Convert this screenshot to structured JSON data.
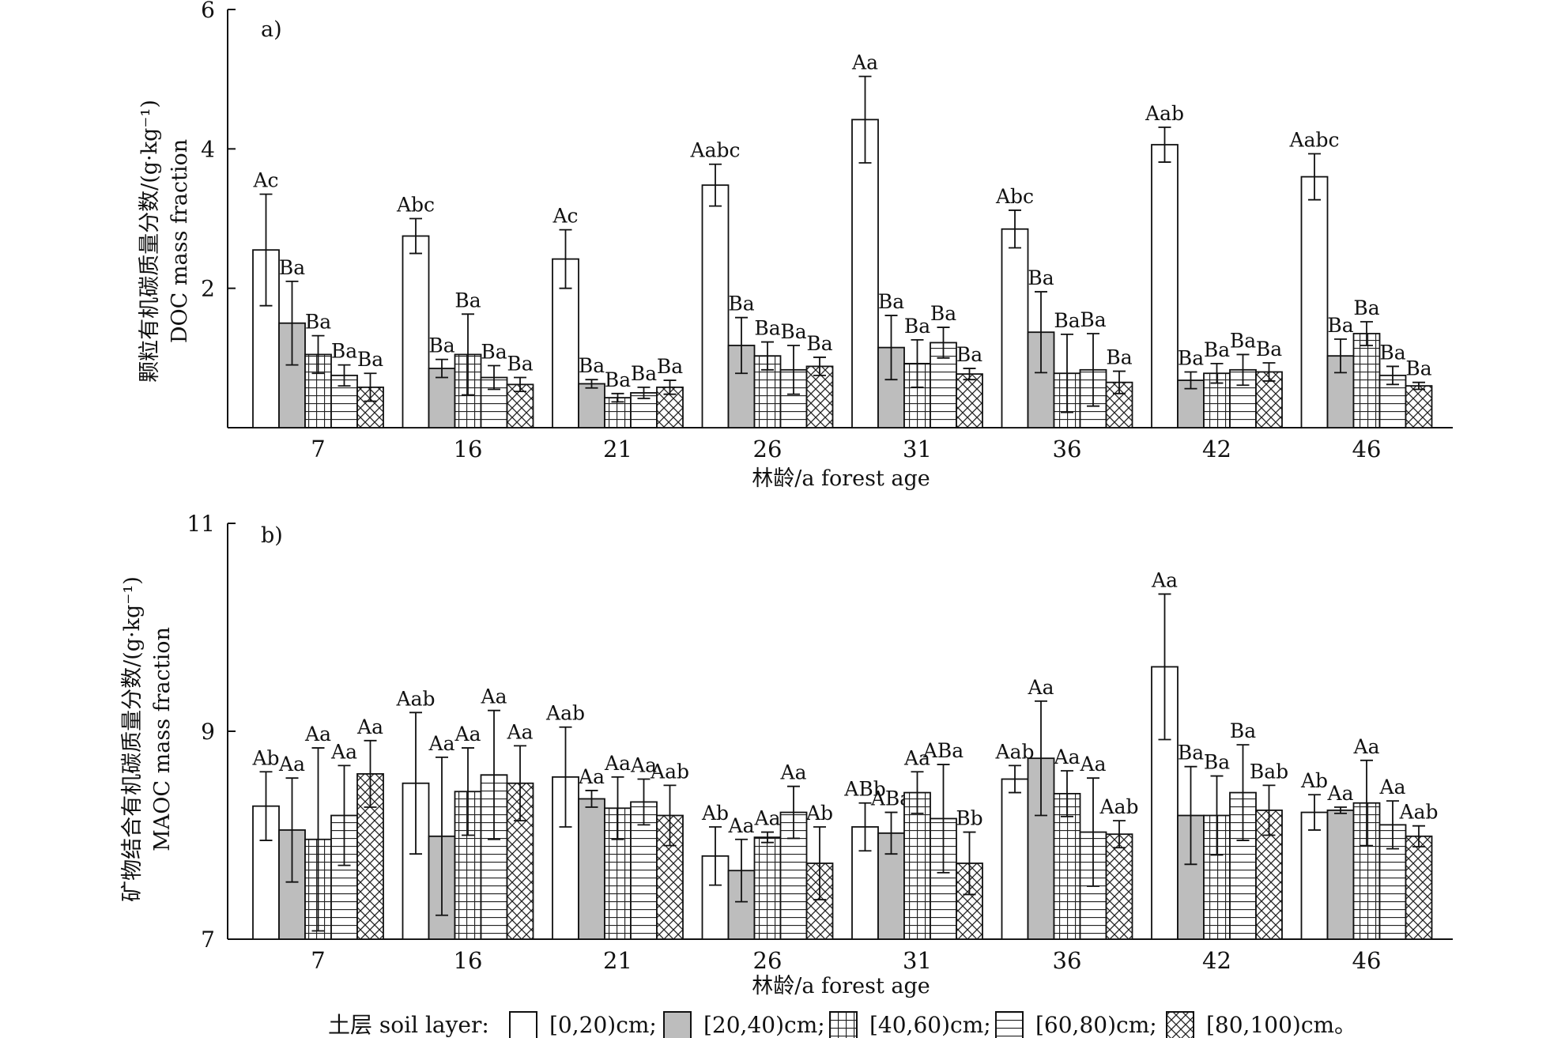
{
  "chart_data": [
    {
      "type": "bar",
      "panel_label": "a)",
      "categories": [
        "7",
        "16",
        "21",
        "26",
        "31",
        "36",
        "42",
        "46"
      ],
      "xlabel": "林龄/a forest age",
      "ylabel_zh": "颗粒有机碳质量分数/(g·kg⁻¹)",
      "ylabel_en": "DOC mass fraction",
      "ylim": [
        0,
        6
      ],
      "yticks": [
        2,
        4,
        6
      ],
      "series": [
        {
          "name": "[0,20)cm",
          "values": [
            2.55,
            2.75,
            2.42,
            3.48,
            4.42,
            2.85,
            4.06,
            3.6
          ],
          "errors": [
            0.8,
            0.25,
            0.42,
            0.3,
            0.62,
            0.27,
            0.25,
            0.33
          ],
          "labels": [
            "Ac",
            "Abc",
            "Ac",
            "Aabc",
            "Aa",
            "Abc",
            "Aab",
            "Aabc"
          ]
        },
        {
          "name": "[20,40)cm",
          "values": [
            1.5,
            0.85,
            0.63,
            1.18,
            1.15,
            1.37,
            0.68,
            1.03
          ],
          "errors": [
            0.6,
            0.13,
            0.06,
            0.4,
            0.46,
            0.58,
            0.12,
            0.24
          ],
          "labels": [
            "Ba",
            "Ba",
            "Ba",
            "Ba",
            "Ba",
            "Ba",
            "Ba",
            "Ba"
          ]
        },
        {
          "name": "[40,60)cm",
          "values": [
            1.05,
            1.05,
            0.43,
            1.03,
            0.92,
            0.78,
            0.78,
            1.35
          ],
          "errors": [
            0.27,
            0.58,
            0.06,
            0.2,
            0.34,
            0.56,
            0.14,
            0.17
          ],
          "labels": [
            "Ba",
            "Ba",
            "Ba",
            "Ba",
            "Ba",
            "Ba",
            "Ba",
            "Ba"
          ]
        },
        {
          "name": "[60,80)cm",
          "values": [
            0.75,
            0.72,
            0.5,
            0.83,
            1.22,
            0.83,
            0.83,
            0.75
          ],
          "errors": [
            0.15,
            0.17,
            0.08,
            0.35,
            0.22,
            0.52,
            0.22,
            0.13
          ],
          "labels": [
            "Ba",
            "Ba",
            "Ba",
            "Ba",
            "Ba",
            "Ba",
            "Ba",
            "Ba"
          ]
        },
        {
          "name": "[80,100)cm",
          "values": [
            0.58,
            0.62,
            0.58,
            0.88,
            0.77,
            0.65,
            0.8,
            0.6
          ],
          "errors": [
            0.2,
            0.1,
            0.1,
            0.13,
            0.08,
            0.16,
            0.13,
            0.05
          ],
          "labels": [
            "Ba",
            "Ba",
            "Ba",
            "Ba",
            "Ba",
            "Ba",
            "Ba",
            "Ba"
          ]
        }
      ]
    },
    {
      "type": "bar",
      "panel_label": "b)",
      "categories": [
        "7",
        "16",
        "21",
        "26",
        "31",
        "36",
        "42",
        "46"
      ],
      "xlabel": "林龄/a forest age",
      "ylabel_zh": "矿物结合有机碳质量分数/(g·kg⁻¹)",
      "ylabel_en": "MAOC mass fraction",
      "ylim": [
        7,
        11
      ],
      "yticks": [
        7,
        9,
        11
      ],
      "series": [
        {
          "name": "[0,20)cm",
          "values": [
            8.28,
            8.5,
            8.56,
            7.8,
            8.08,
            8.54,
            9.62,
            8.22
          ],
          "errors": [
            0.33,
            0.68,
            0.48,
            0.28,
            0.23,
            0.13,
            0.7,
            0.17
          ],
          "labels": [
            "Ab",
            "Aab",
            "Aab",
            "Ab",
            "ABb",
            "Aab",
            "Aa",
            "Ab"
          ]
        },
        {
          "name": "[20,40)cm",
          "values": [
            8.05,
            7.99,
            8.35,
            7.66,
            8.02,
            8.74,
            8.19,
            8.24
          ],
          "errors": [
            0.5,
            0.76,
            0.08,
            0.3,
            0.2,
            0.55,
            0.47,
            0.03
          ],
          "labels": [
            "Aa",
            "Aa",
            "Aa",
            "Aa",
            "ABa",
            "Aa",
            "Ba",
            "Aa"
          ]
        },
        {
          "name": "[40,60)cm",
          "values": [
            7.96,
            8.42,
            8.26,
            7.98,
            8.41,
            8.4,
            8.19,
            8.31
          ],
          "errors": [
            0.88,
            0.42,
            0.3,
            0.05,
            0.2,
            0.22,
            0.38,
            0.41
          ],
          "labels": [
            "Aa",
            "Aa",
            "Aa",
            "Aa",
            "Aa",
            "Aa",
            "Ba",
            "Aa"
          ]
        },
        {
          "name": "[60,80)cm",
          "values": [
            8.19,
            8.58,
            8.32,
            8.22,
            8.16,
            8.03,
            8.41,
            8.1
          ],
          "errors": [
            0.48,
            0.62,
            0.22,
            0.25,
            0.52,
            0.52,
            0.46,
            0.23
          ],
          "labels": [
            "Aa",
            "Aa",
            "Aa",
            "Aa",
            "ABa",
            "Aa",
            "Ba",
            "Aa"
          ]
        },
        {
          "name": "[80,100)cm",
          "values": [
            8.59,
            8.5,
            8.19,
            7.73,
            7.73,
            8.01,
            8.24,
            7.99
          ],
          "errors": [
            0.32,
            0.36,
            0.29,
            0.35,
            0.3,
            0.13,
            0.24,
            0.1
          ],
          "labels": [
            "Aa",
            "Aa",
            "Aab",
            "Ab",
            "Bb",
            "Aab",
            "Bab",
            "Aab"
          ]
        }
      ]
    }
  ],
  "legend": {
    "title": "土层 soil layer:",
    "items": [
      "[0,20)cm;",
      "[20,40)cm;",
      "[40,60)cm;",
      "[60,80)cm;",
      "[80,100)cm。"
    ]
  }
}
